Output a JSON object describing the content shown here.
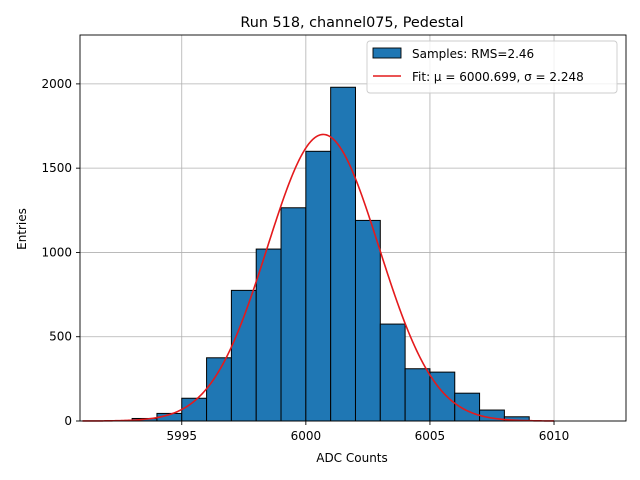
{
  "chart_data": {
    "type": "bar",
    "title": "Run 518, channel075, Pedestal",
    "xlabel": "ADC Counts",
    "ylabel": "Entries",
    "xlim": [
      5990.9,
      6012.9
    ],
    "ylim": [
      0,
      2290
    ],
    "x_ticks": [
      5995,
      6000,
      6005,
      6010
    ],
    "y_ticks": [
      0,
      500,
      1000,
      1500,
      2000
    ],
    "grid": true,
    "legend_position": "top-right",
    "bin_width": 1,
    "bins": [
      {
        "left": 5992,
        "value": 3
      },
      {
        "left": 5993,
        "value": 15
      },
      {
        "left": 5994,
        "value": 45
      },
      {
        "left": 5995,
        "value": 135
      },
      {
        "left": 5996,
        "value": 375
      },
      {
        "left": 5997,
        "value": 775
      },
      {
        "left": 5998,
        "value": 1020
      },
      {
        "left": 5999,
        "value": 1265
      },
      {
        "left": 6000,
        "value": 1600
      },
      {
        "left": 6001,
        "value": 1980
      },
      {
        "left": 6002,
        "value": 1190
      },
      {
        "left": 6003,
        "value": 575
      },
      {
        "left": 6004,
        "value": 310
      },
      {
        "left": 6005,
        "value": 290
      },
      {
        "left": 6006,
        "value": 165
      },
      {
        "left": 6007,
        "value": 65
      },
      {
        "left": 6008,
        "value": 25
      }
    ],
    "fit": {
      "mu": 6000.699,
      "sigma": 2.248,
      "amplitude": 1700,
      "x_range": [
        5991,
        6010
      ]
    },
    "series": [
      {
        "name": "Samples: RMS=2.46",
        "kind": "histogram",
        "color": "#1f77b4"
      },
      {
        "name": "Fit: μ = 6000.699, σ = 2.248",
        "kind": "line",
        "color": "#e41a1c"
      }
    ]
  }
}
